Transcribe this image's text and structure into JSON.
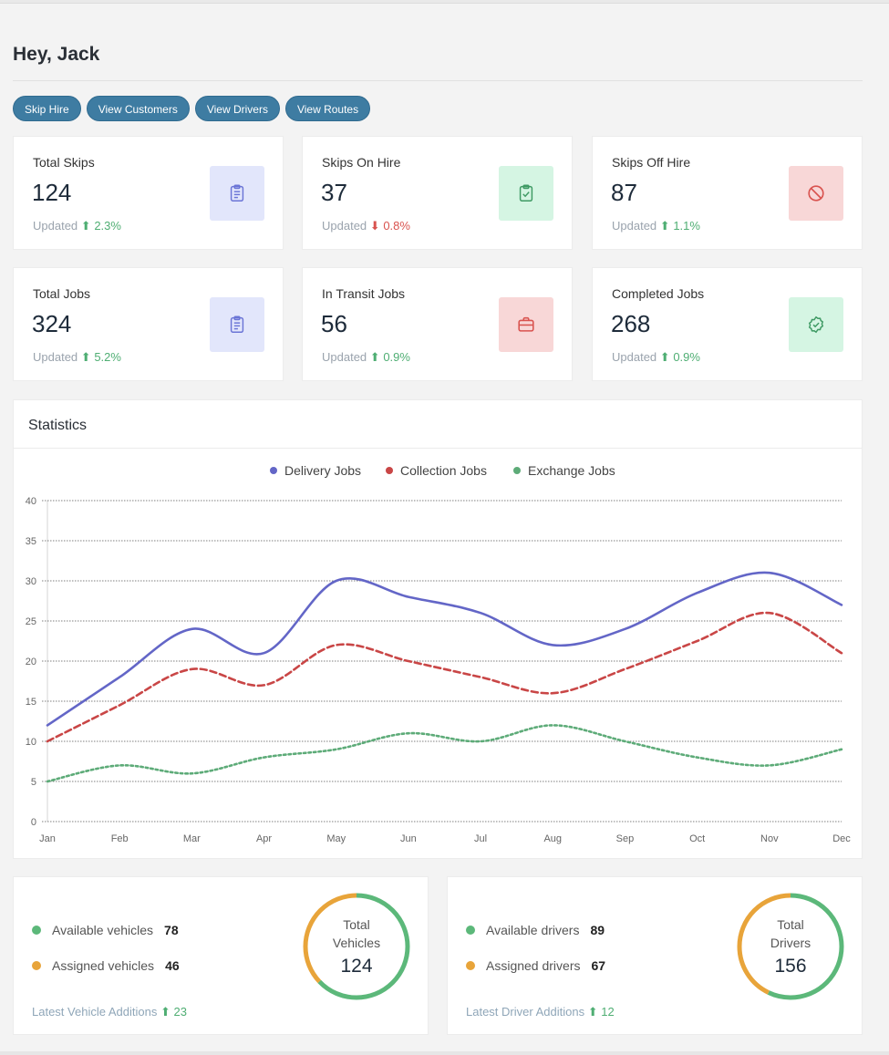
{
  "greeting": "Hey, Jack",
  "actions": [
    "Skip Hire",
    "View Customers",
    "View Drivers",
    "View Routes"
  ],
  "stats": [
    {
      "label": "Total Skips",
      "value": "124",
      "updated": "Updated",
      "change": "2.3%",
      "direction": "up",
      "icon": "clipboard-icon",
      "icon_bg": "#e2e6fb",
      "icon_color": "#6b75d6"
    },
    {
      "label": "Skips On Hire",
      "value": "37",
      "updated": "Updated",
      "change": "0.8%",
      "direction": "down",
      "icon": "clipboard-check-icon",
      "icon_bg": "#d5f5e3",
      "icon_color": "#3f9a64"
    },
    {
      "label": "Skips Off Hire",
      "value": "87",
      "updated": "Updated",
      "change": "1.1%",
      "direction": "up",
      "icon": "ban-icon",
      "icon_bg": "#f8d7d7",
      "icon_color": "#d9534f"
    },
    {
      "label": "Total Jobs",
      "value": "324",
      "updated": "Updated",
      "change": "5.2%",
      "direction": "up",
      "icon": "clipboard-icon",
      "icon_bg": "#e2e6fb",
      "icon_color": "#6b75d6"
    },
    {
      "label": "In Transit Jobs",
      "value": "56",
      "updated": "Updated",
      "change": "0.9%",
      "direction": "up",
      "icon": "briefcase-icon",
      "icon_bg": "#f8d7d7",
      "icon_color": "#d9534f"
    },
    {
      "label": "Completed Jobs",
      "value": "268",
      "updated": "Updated",
      "change": "0.9%",
      "direction": "up",
      "icon": "check-badge-icon",
      "icon_bg": "#d5f5e3",
      "icon_color": "#3f9a64"
    }
  ],
  "statistics": {
    "title": "Statistics"
  },
  "chart_data": {
    "type": "line",
    "categories": [
      "Jan",
      "Feb",
      "Mar",
      "Apr",
      "May",
      "Jun",
      "Jul",
      "Aug",
      "Sep",
      "Oct",
      "Nov",
      "Dec"
    ],
    "series": [
      {
        "name": "Delivery Jobs",
        "color": "#6366c7",
        "style": "solid",
        "values": [
          12,
          18,
          24,
          21,
          30,
          28,
          26,
          22,
          24,
          28.5,
          31,
          27
        ]
      },
      {
        "name": "Collection Jobs",
        "color": "#c94646",
        "style": "dashed",
        "values": [
          10,
          14.5,
          19,
          17,
          22,
          20,
          18,
          16,
          19,
          22.5,
          26,
          21
        ]
      },
      {
        "name": "Exchange Jobs",
        "color": "#5dab78",
        "style": "dotted",
        "values": [
          5,
          7,
          6,
          8,
          9,
          11,
          10,
          12,
          10,
          8,
          7,
          9
        ]
      }
    ],
    "yticks": [
      "0",
      "5",
      "10",
      "15",
      "20",
      "25",
      "30",
      "35",
      "40"
    ],
    "ylim": [
      0,
      40
    ],
    "grid": true,
    "legend": "top-center"
  },
  "vehicles": {
    "available_label": "Available vehicles",
    "available": "78",
    "assigned_label": "Assigned vehicles",
    "assigned": "46",
    "total_line1": "Total",
    "total_line2": "Vehicles",
    "total": "124",
    "latest_label": "Latest Vehicle Additions",
    "latest": "23"
  },
  "drivers": {
    "available_label": "Available drivers",
    "available": "89",
    "assigned_label": "Assigned drivers",
    "assigned": "67",
    "total_line1": "Total",
    "total_line2": "Drivers",
    "total": "156",
    "latest_label": "Latest Driver Additions",
    "latest": "12"
  },
  "colors": {
    "available": "#5cb87a",
    "assigned": "#e8a43a",
    "primary_button": "#3e7ca2"
  }
}
